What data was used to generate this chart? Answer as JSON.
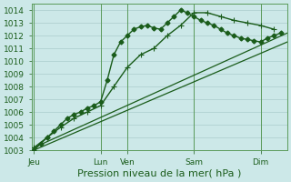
{
  "background_color": "#cce8e8",
  "grid_color": "#aacccc",
  "line_color": "#1a5c1a",
  "ylim": [
    1003,
    1014.5
  ],
  "yticks": [
    1003,
    1004,
    1005,
    1006,
    1007,
    1008,
    1009,
    1010,
    1011,
    1012,
    1013,
    1014
  ],
  "xlabel": "Pression niveau de la mer( hPa )",
  "xlabel_fontsize": 8,
  "xtick_labels": [
    "Jeu",
    "Lun",
    "Ven",
    "Sam",
    "Dim"
  ],
  "xtick_positions": [
    0,
    60,
    84,
    144,
    204
  ],
  "xlim": [
    -2,
    228
  ],
  "vlines": [
    0,
    60,
    84,
    144,
    204
  ],
  "tick_fontsize": 6.5,
  "series_jagged1": {
    "x": [
      0,
      6,
      12,
      18,
      24,
      30,
      36,
      42,
      48,
      54,
      60,
      66,
      72,
      78,
      84,
      90,
      96,
      102,
      108,
      114,
      120,
      126,
      132,
      138,
      144,
      150,
      156,
      162,
      168,
      174,
      180,
      186,
      192,
      198,
      204,
      210,
      216,
      222
    ],
    "y": [
      1003.0,
      1003.5,
      1004.0,
      1004.5,
      1005.0,
      1005.5,
      1005.8,
      1006.0,
      1006.3,
      1006.5,
      1006.8,
      1008.5,
      1010.5,
      1011.5,
      1012.0,
      1012.5,
      1012.7,
      1012.8,
      1012.6,
      1012.5,
      1013.0,
      1013.5,
      1014.0,
      1013.8,
      1013.5,
      1013.2,
      1013.0,
      1012.8,
      1012.5,
      1012.2,
      1012.0,
      1011.8,
      1011.7,
      1011.6,
      1011.5,
      1011.8,
      1012.0,
      1012.2
    ],
    "marker": "D",
    "markersize": 2.5,
    "linewidth": 1.0
  },
  "series_jagged2": {
    "x": [
      0,
      12,
      24,
      36,
      48,
      60,
      72,
      84,
      96,
      108,
      120,
      132,
      144,
      156,
      168,
      180,
      192,
      204,
      216
    ],
    "y": [
      1003.2,
      1004.0,
      1004.8,
      1005.5,
      1006.0,
      1006.5,
      1008.0,
      1009.5,
      1010.5,
      1011.0,
      1012.0,
      1012.8,
      1013.8,
      1013.8,
      1013.5,
      1013.2,
      1013.0,
      1012.8,
      1012.5
    ],
    "marker": "+",
    "markersize": 4,
    "markeredgewidth": 0.8,
    "linewidth": 1.0
  },
  "series_trend1": {
    "x": [
      0,
      228
    ],
    "y": [
      1003.0,
      1011.5
    ],
    "linewidth": 0.9
  },
  "series_trend2": {
    "x": [
      0,
      228
    ],
    "y": [
      1003.2,
      1012.2
    ],
    "linewidth": 0.9
  }
}
